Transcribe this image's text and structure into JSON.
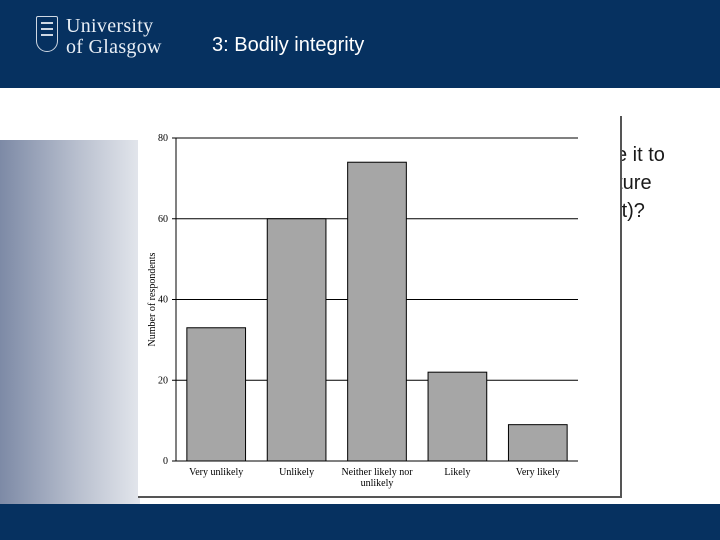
{
  "header": {
    "logo_line1": "University",
    "logo_line2": "of Glasgow",
    "title": "3: Bodily integrity"
  },
  "question_text": "ve it to\nuture\nult)?",
  "colors": {
    "header": "#063160",
    "bar": "#a6a6a6",
    "grid": "#000000"
  },
  "chart_data": {
    "type": "bar",
    "categories": [
      "Very unlikely",
      "Unlikely",
      "Neither likely nor unlikely",
      "Likely",
      "Very likely"
    ],
    "category_lines": [
      [
        "Very unlikely"
      ],
      [
        "Unlikely"
      ],
      [
        "Neither likely nor",
        "unlikely"
      ],
      [
        "Likely"
      ],
      [
        "Very likely"
      ]
    ],
    "values": [
      33,
      60,
      74,
      22,
      9
    ],
    "title": "",
    "xlabel": "",
    "ylabel": "Number of respondents",
    "ylim": [
      0,
      80
    ],
    "yticks": [
      0,
      20,
      40,
      60,
      80
    ],
    "grid": true
  }
}
